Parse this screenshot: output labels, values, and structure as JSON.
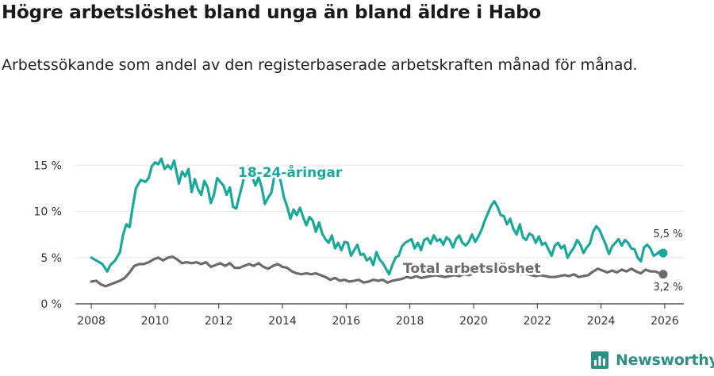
{
  "title": "Högre arbetslöshet bland unga än bland äldre i Habo",
  "subtitle": "Arbetssökande som andel av den registerbaserade arbetskraften månad för månad.",
  "brand": {
    "name": "Newsworthy",
    "icon": "newsworthy-logo-icon",
    "color": "#2f8f86"
  },
  "colors": {
    "youth": "#1aa89a",
    "total": "#6b6b6b",
    "axis": "#333333",
    "grid": "#e5e5e5"
  },
  "chart_data": {
    "type": "line",
    "xlim": [
      2007.5,
      2026.6
    ],
    "ylim": [
      0,
      17
    ],
    "x_ticks": [
      2008,
      2010,
      2012,
      2014,
      2016,
      2018,
      2020,
      2022,
      2024,
      2026
    ],
    "x_tick_labels": [
      "2008",
      "2010",
      "2012",
      "2014",
      "2016",
      "2018",
      "2020",
      "2022",
      "2024",
      "2026"
    ],
    "y_ticks": [
      0,
      5,
      10,
      15
    ],
    "y_tick_labels": [
      "0 %",
      "5 %",
      "10 %",
      "15 %"
    ],
    "series": [
      {
        "name": "18-24-åringar",
        "label": "18-24-åringar",
        "end_label": "5,5 %",
        "end_value": 5.5,
        "points": [
          [
            2008.0,
            5.0
          ],
          [
            2008.2,
            4.6
          ],
          [
            2008.35,
            4.3
          ],
          [
            2008.5,
            3.5
          ],
          [
            2008.6,
            4.2
          ],
          [
            2008.75,
            4.7
          ],
          [
            2008.9,
            5.6
          ],
          [
            2009.0,
            7.5
          ],
          [
            2009.1,
            8.6
          ],
          [
            2009.2,
            8.3
          ],
          [
            2009.3,
            10.5
          ],
          [
            2009.4,
            12.5
          ],
          [
            2009.55,
            13.4
          ],
          [
            2009.7,
            13.2
          ],
          [
            2009.8,
            13.6
          ],
          [
            2009.9,
            14.9
          ],
          [
            2010.0,
            15.3
          ],
          [
            2010.1,
            15.1
          ],
          [
            2010.2,
            15.7
          ],
          [
            2010.3,
            14.6
          ],
          [
            2010.4,
            15.0
          ],
          [
            2010.5,
            14.6
          ],
          [
            2010.6,
            15.5
          ],
          [
            2010.75,
            13.0
          ],
          [
            2010.85,
            14.3
          ],
          [
            2010.95,
            13.8
          ],
          [
            2011.05,
            14.6
          ],
          [
            2011.15,
            12.1
          ],
          [
            2011.25,
            13.5
          ],
          [
            2011.35,
            12.4
          ],
          [
            2011.45,
            11.8
          ],
          [
            2011.55,
            13.3
          ],
          [
            2011.65,
            12.6
          ],
          [
            2011.75,
            10.9
          ],
          [
            2011.85,
            11.8
          ],
          [
            2011.95,
            13.6
          ],
          [
            2012.05,
            13.2
          ],
          [
            2012.15,
            12.8
          ],
          [
            2012.25,
            11.8
          ],
          [
            2012.35,
            12.6
          ],
          [
            2012.45,
            10.5
          ],
          [
            2012.55,
            10.3
          ],
          [
            2012.65,
            11.7
          ],
          [
            2012.75,
            13.0
          ],
          [
            2012.85,
            14.6
          ],
          [
            2012.95,
            14.9
          ],
          [
            2013.05,
            13.8
          ],
          [
            2013.15,
            12.8
          ],
          [
            2013.25,
            13.7
          ],
          [
            2013.35,
            12.6
          ],
          [
            2013.45,
            10.8
          ],
          [
            2013.55,
            11.5
          ],
          [
            2013.65,
            12.0
          ],
          [
            2013.75,
            13.9
          ],
          [
            2013.85,
            14.3
          ],
          [
            2013.95,
            13.2
          ],
          [
            2014.05,
            11.5
          ],
          [
            2014.15,
            10.5
          ],
          [
            2014.25,
            9.2
          ],
          [
            2014.35,
            10.2
          ],
          [
            2014.45,
            9.6
          ],
          [
            2014.55,
            10.4
          ],
          [
            2014.65,
            9.4
          ],
          [
            2014.75,
            8.5
          ],
          [
            2014.85,
            9.4
          ],
          [
            2014.95,
            9.0
          ],
          [
            2015.05,
            7.8
          ],
          [
            2015.15,
            8.8
          ],
          [
            2015.25,
            7.6
          ],
          [
            2015.35,
            7.0
          ],
          [
            2015.45,
            6.6
          ],
          [
            2015.55,
            7.4
          ],
          [
            2015.65,
            6.0
          ],
          [
            2015.75,
            6.6
          ],
          [
            2015.85,
            5.8
          ],
          [
            2015.95,
            6.7
          ],
          [
            2016.05,
            6.6
          ],
          [
            2016.15,
            5.2
          ],
          [
            2016.25,
            5.8
          ],
          [
            2016.35,
            6.4
          ],
          [
            2016.45,
            5.3
          ],
          [
            2016.55,
            5.4
          ],
          [
            2016.65,
            4.7
          ],
          [
            2016.75,
            5.0
          ],
          [
            2016.85,
            4.2
          ],
          [
            2016.95,
            5.6
          ],
          [
            2017.05,
            4.8
          ],
          [
            2017.15,
            4.4
          ],
          [
            2017.25,
            3.8
          ],
          [
            2017.35,
            3.2
          ],
          [
            2017.45,
            4.2
          ],
          [
            2017.55,
            5.0
          ],
          [
            2017.65,
            5.2
          ],
          [
            2017.75,
            6.2
          ],
          [
            2017.85,
            6.6
          ],
          [
            2017.95,
            6.8
          ],
          [
            2018.05,
            7.0
          ],
          [
            2018.15,
            6.0
          ],
          [
            2018.25,
            6.6
          ],
          [
            2018.35,
            5.8
          ],
          [
            2018.45,
            6.9
          ],
          [
            2018.55,
            7.1
          ],
          [
            2018.65,
            6.5
          ],
          [
            2018.75,
            7.4
          ],
          [
            2018.85,
            6.8
          ],
          [
            2018.95,
            7.0
          ],
          [
            2019.05,
            6.4
          ],
          [
            2019.15,
            7.2
          ],
          [
            2019.25,
            6.9
          ],
          [
            2019.35,
            6.1
          ],
          [
            2019.45,
            7.0
          ],
          [
            2019.55,
            7.4
          ],
          [
            2019.65,
            6.6
          ],
          [
            2019.75,
            6.3
          ],
          [
            2019.85,
            6.7
          ],
          [
            2019.95,
            7.5
          ],
          [
            2020.05,
            6.7
          ],
          [
            2020.15,
            7.3
          ],
          [
            2020.25,
            8.0
          ],
          [
            2020.35,
            9.0
          ],
          [
            2020.45,
            9.8
          ],
          [
            2020.55,
            10.6
          ],
          [
            2020.65,
            11.1
          ],
          [
            2020.75,
            10.5
          ],
          [
            2020.85,
            9.6
          ],
          [
            2020.95,
            9.5
          ],
          [
            2021.05,
            8.6
          ],
          [
            2021.15,
            9.2
          ],
          [
            2021.25,
            8.1
          ],
          [
            2021.35,
            7.5
          ],
          [
            2021.45,
            8.6
          ],
          [
            2021.55,
            7.2
          ],
          [
            2021.65,
            6.9
          ],
          [
            2021.75,
            7.6
          ],
          [
            2021.85,
            7.4
          ],
          [
            2021.95,
            6.6
          ],
          [
            2022.05,
            7.3
          ],
          [
            2022.15,
            6.4
          ],
          [
            2022.25,
            6.6
          ],
          [
            2022.35,
            5.9
          ],
          [
            2022.45,
            5.2
          ],
          [
            2022.55,
            6.3
          ],
          [
            2022.65,
            6.6
          ],
          [
            2022.75,
            6.0
          ],
          [
            2022.85,
            6.3
          ],
          [
            2022.95,
            5.0
          ],
          [
            2023.05,
            5.6
          ],
          [
            2023.15,
            6.1
          ],
          [
            2023.25,
            6.9
          ],
          [
            2023.35,
            6.4
          ],
          [
            2023.45,
            5.5
          ],
          [
            2023.55,
            6.1
          ],
          [
            2023.65,
            6.5
          ],
          [
            2023.75,
            7.8
          ],
          [
            2023.85,
            8.4
          ],
          [
            2023.95,
            8.0
          ],
          [
            2024.05,
            7.2
          ],
          [
            2024.15,
            6.4
          ],
          [
            2024.25,
            5.4
          ],
          [
            2024.35,
            6.2
          ],
          [
            2024.45,
            6.6
          ],
          [
            2024.55,
            7.0
          ],
          [
            2024.65,
            6.3
          ],
          [
            2024.75,
            6.9
          ],
          [
            2024.85,
            6.6
          ],
          [
            2024.95,
            6.0
          ],
          [
            2025.05,
            5.9
          ],
          [
            2025.15,
            5.0
          ],
          [
            2025.25,
            4.6
          ],
          [
            2025.35,
            6.1
          ],
          [
            2025.45,
            6.4
          ],
          [
            2025.55,
            6.0
          ],
          [
            2025.65,
            5.2
          ],
          [
            2025.75,
            5.4
          ],
          [
            2025.85,
            5.7
          ],
          [
            2025.95,
            5.5
          ]
        ]
      },
      {
        "name": "Total arbetslöshet",
        "label": "Total arbetslöshet",
        "end_label": "3,2 %",
        "end_value": 3.2,
        "points": [
          [
            2008.0,
            2.4
          ],
          [
            2008.15,
            2.5
          ],
          [
            2008.3,
            2.1
          ],
          [
            2008.45,
            1.9
          ],
          [
            2008.6,
            2.1
          ],
          [
            2008.75,
            2.3
          ],
          [
            2008.9,
            2.5
          ],
          [
            2009.05,
            2.8
          ],
          [
            2009.2,
            3.4
          ],
          [
            2009.35,
            4.1
          ],
          [
            2009.5,
            4.3
          ],
          [
            2009.65,
            4.3
          ],
          [
            2009.8,
            4.5
          ],
          [
            2009.95,
            4.8
          ],
          [
            2010.1,
            5.0
          ],
          [
            2010.25,
            4.7
          ],
          [
            2010.4,
            5.0
          ],
          [
            2010.55,
            5.1
          ],
          [
            2010.7,
            4.8
          ],
          [
            2010.85,
            4.4
          ],
          [
            2011.0,
            4.5
          ],
          [
            2011.15,
            4.4
          ],
          [
            2011.3,
            4.5
          ],
          [
            2011.45,
            4.3
          ],
          [
            2011.6,
            4.5
          ],
          [
            2011.75,
            4.0
          ],
          [
            2011.9,
            4.2
          ],
          [
            2012.05,
            4.4
          ],
          [
            2012.2,
            4.1
          ],
          [
            2012.35,
            4.4
          ],
          [
            2012.5,
            3.9
          ],
          [
            2012.65,
            3.9
          ],
          [
            2012.8,
            4.1
          ],
          [
            2012.95,
            4.3
          ],
          [
            2013.1,
            4.1
          ],
          [
            2013.25,
            4.4
          ],
          [
            2013.4,
            4.0
          ],
          [
            2013.55,
            3.8
          ],
          [
            2013.7,
            4.1
          ],
          [
            2013.85,
            4.3
          ],
          [
            2014.0,
            4.0
          ],
          [
            2014.15,
            3.9
          ],
          [
            2014.3,
            3.5
          ],
          [
            2014.45,
            3.3
          ],
          [
            2014.6,
            3.2
          ],
          [
            2014.75,
            3.3
          ],
          [
            2014.9,
            3.2
          ],
          [
            2015.05,
            3.3
          ],
          [
            2015.2,
            3.1
          ],
          [
            2015.35,
            2.9
          ],
          [
            2015.5,
            2.6
          ],
          [
            2015.65,
            2.8
          ],
          [
            2015.8,
            2.5
          ],
          [
            2015.95,
            2.6
          ],
          [
            2016.1,
            2.4
          ],
          [
            2016.25,
            2.5
          ],
          [
            2016.4,
            2.6
          ],
          [
            2016.55,
            2.3
          ],
          [
            2016.7,
            2.4
          ],
          [
            2016.85,
            2.6
          ],
          [
            2017.0,
            2.5
          ],
          [
            2017.15,
            2.6
          ],
          [
            2017.3,
            2.3
          ],
          [
            2017.45,
            2.5
          ],
          [
            2017.6,
            2.6
          ],
          [
            2017.75,
            2.7
          ],
          [
            2017.9,
            2.9
          ],
          [
            2018.05,
            2.8
          ],
          [
            2018.2,
            3.0
          ],
          [
            2018.35,
            2.8
          ],
          [
            2018.5,
            2.9
          ],
          [
            2018.65,
            3.0
          ],
          [
            2018.8,
            3.1
          ],
          [
            2018.95,
            3.0
          ],
          [
            2019.1,
            2.9
          ],
          [
            2019.25,
            3.0
          ],
          [
            2019.4,
            3.1
          ],
          [
            2019.55,
            3.0
          ],
          [
            2019.7,
            3.2
          ],
          [
            2019.85,
            3.1
          ],
          [
            2020.0,
            3.3
          ],
          [
            2020.15,
            3.5
          ],
          [
            2020.3,
            3.6
          ],
          [
            2020.45,
            3.7
          ],
          [
            2020.6,
            3.8
          ],
          [
            2020.75,
            3.6
          ],
          [
            2020.9,
            3.5
          ],
          [
            2021.05,
            3.4
          ],
          [
            2021.2,
            3.3
          ],
          [
            2021.35,
            3.4
          ],
          [
            2021.5,
            3.2
          ],
          [
            2021.65,
            3.3
          ],
          [
            2021.8,
            3.1
          ],
          [
            2021.95,
            3.0
          ],
          [
            2022.1,
            3.1
          ],
          [
            2022.25,
            3.0
          ],
          [
            2022.4,
            2.9
          ],
          [
            2022.55,
            2.9
          ],
          [
            2022.7,
            3.0
          ],
          [
            2022.85,
            3.1
          ],
          [
            2023.0,
            3.0
          ],
          [
            2023.15,
            3.2
          ],
          [
            2023.3,
            2.9
          ],
          [
            2023.45,
            3.0
          ],
          [
            2023.6,
            3.1
          ],
          [
            2023.75,
            3.5
          ],
          [
            2023.9,
            3.8
          ],
          [
            2024.05,
            3.6
          ],
          [
            2024.2,
            3.4
          ],
          [
            2024.35,
            3.6
          ],
          [
            2024.5,
            3.4
          ],
          [
            2024.65,
            3.7
          ],
          [
            2024.8,
            3.5
          ],
          [
            2024.95,
            3.8
          ],
          [
            2025.1,
            3.5
          ],
          [
            2025.25,
            3.3
          ],
          [
            2025.4,
            3.7
          ],
          [
            2025.55,
            3.5
          ],
          [
            2025.7,
            3.5
          ],
          [
            2025.85,
            3.3
          ],
          [
            2025.95,
            3.2
          ]
        ]
      }
    ]
  }
}
